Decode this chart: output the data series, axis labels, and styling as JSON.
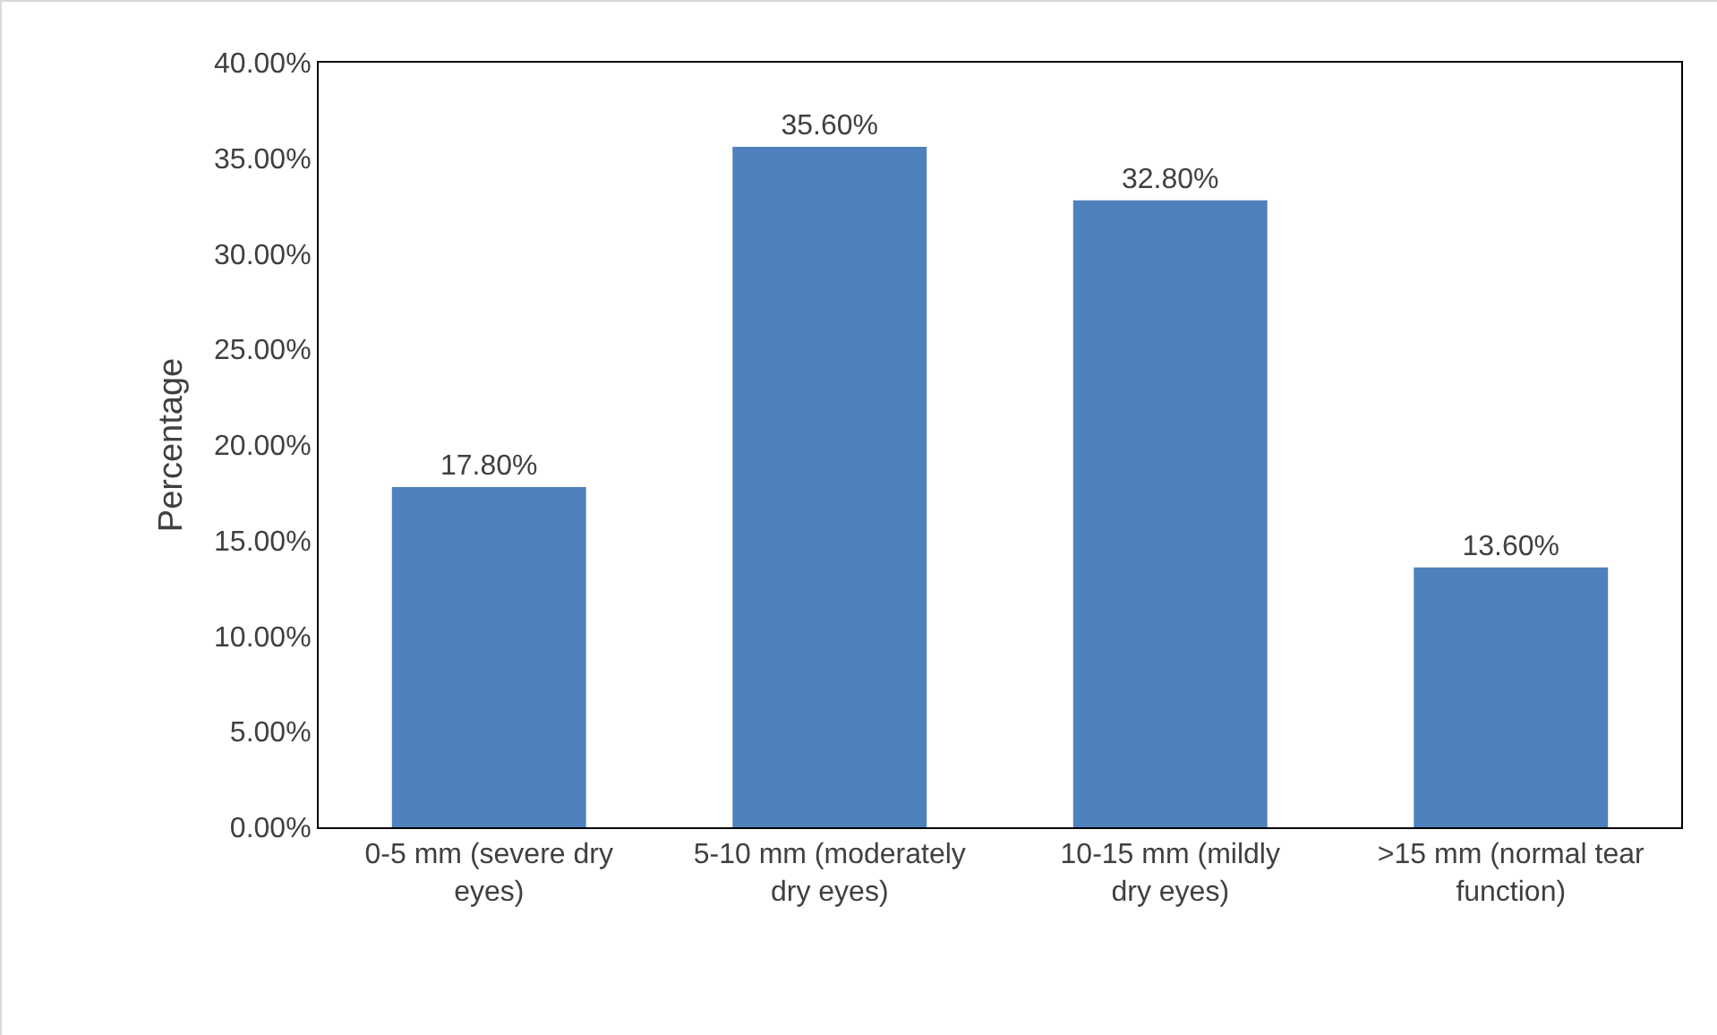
{
  "chart_data": {
    "type": "bar",
    "ylabel": "Percentage",
    "categories": [
      "0-5 mm (severe dry eyes)",
      "5-10 mm (moderately dry eyes)",
      "10-15 mm (mildly dry eyes)",
      ">15 mm (normal tear function)"
    ],
    "values": [
      17.8,
      35.6,
      32.8,
      13.6
    ],
    "value_labels": [
      "17.80%",
      "35.60%",
      "32.80%",
      "13.60%"
    ],
    "color": "#4f81bd",
    "ylim": [
      0,
      40
    ],
    "yticks": [
      {
        "value": 0,
        "label": "0.00%"
      },
      {
        "value": 5,
        "label": "5.00%"
      },
      {
        "value": 10,
        "label": "10.00%"
      },
      {
        "value": 15,
        "label": "15.00%"
      },
      {
        "value": 20,
        "label": "20.00%"
      },
      {
        "value": 25,
        "label": "25.00%"
      },
      {
        "value": 30,
        "label": "30.00%"
      },
      {
        "value": 35,
        "label": "35.00%"
      },
      {
        "value": 40,
        "label": "40.00%"
      }
    ],
    "grid": false,
    "legend": false
  }
}
